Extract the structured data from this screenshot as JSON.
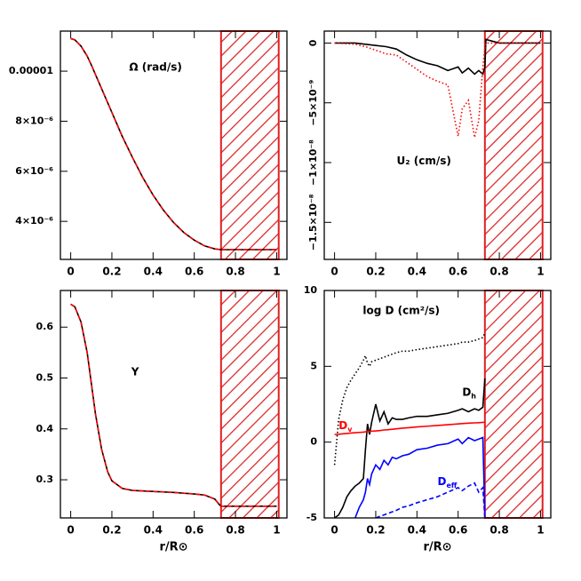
{
  "chart_data": [
    {
      "type": "line",
      "title": "Ω (rad/s)",
      "x": [
        0,
        0.02,
        0.05,
        0.08,
        0.1,
        0.15,
        0.2,
        0.25,
        0.3,
        0.35,
        0.4,
        0.45,
        0.5,
        0.55,
        0.6,
        0.65,
        0.7,
        0.73,
        0.8,
        0.9,
        1.0
      ],
      "series": [
        {
          "color": "#000000",
          "dash": "solid",
          "values": [
            1.13e-05,
            1.125e-05,
            1.1e-05,
            1.06e-05,
            1.025e-05,
            9.3e-06,
            8.35e-06,
            7.4e-06,
            6.55e-06,
            5.75e-06,
            5.05e-06,
            4.45e-06,
            3.95e-06,
            3.55e-06,
            3.25e-06,
            3.02e-06,
            2.9e-06,
            2.87e-06,
            2.87e-06,
            2.87e-06,
            2.87e-06
          ]
        },
        {
          "color": "#ff0000",
          "dash": "dashed",
          "values": [
            1.13e-05,
            1.125e-05,
            1.1e-05,
            1.06e-05,
            1.025e-05,
            9.3e-06,
            8.35e-06,
            7.4e-06,
            6.55e-06,
            5.75e-06,
            5.05e-06,
            4.45e-06,
            3.95e-06,
            3.55e-06,
            3.25e-06,
            3.02e-06,
            2.9e-06,
            2.87e-06,
            2.87e-06,
            2.87e-06,
            2.87e-06
          ]
        }
      ],
      "xlim": [
        -0.05,
        1.05
      ],
      "xticks": [
        0,
        0.2,
        0.4,
        0.6,
        0.8,
        1
      ],
      "ylim": [
        2.48e-06,
        1.16e-05
      ],
      "yticks": [
        {
          "value": 4e-06,
          "label": "4×10⁻⁶"
        },
        {
          "value": 6e-06,
          "label": "6×10⁻⁶"
        },
        {
          "value": 8e-06,
          "label": "8×10⁻⁶"
        },
        1e-05
      ],
      "shaded_region": [
        0.73,
        1.01
      ],
      "shade_color": "#dd2222"
    },
    {
      "type": "line",
      "title": "U₂ (cm/s)",
      "x": [
        0,
        0.1,
        0.15,
        0.2,
        0.25,
        0.3,
        0.35,
        0.4,
        0.45,
        0.5,
        0.55,
        0.6,
        0.62,
        0.65,
        0.68,
        0.7,
        0.72,
        0.73,
        0.735,
        0.8,
        0.9,
        1.0
      ],
      "series": [
        {
          "color": "#000000",
          "dash": "solid",
          "values": [
            0,
            0,
            -1e-10,
            -2e-10,
            -3e-10,
            -5e-10,
            -1e-09,
            -1.4e-09,
            -1.7e-09,
            -1.9e-09,
            -2.3e-09,
            -2e-09,
            -2.5e-09,
            -2.1e-09,
            -2.6e-09,
            -2.3e-09,
            -2.6e-09,
            -2e-09,
            3e-10,
            0,
            0,
            0
          ]
        },
        {
          "color": "#ff0000",
          "dash": "dotted",
          "values": [
            0,
            -1e-10,
            -3e-10,
            -6e-10,
            -9e-10,
            -1e-09,
            -1.6e-09,
            -2.2e-09,
            -2.8e-09,
            -3.2e-09,
            -3.5e-09,
            -7.8e-09,
            -5.5e-09,
            -4.8e-09,
            -7.9e-09,
            -6.5e-09,
            -2e-09,
            -5e-10,
            0,
            0,
            0,
            0
          ]
        }
      ],
      "xlim": [
        -0.05,
        1.05
      ],
      "xticks": [
        0,
        0.2,
        0.4,
        0.6,
        0.8,
        1
      ],
      "ylim": [
        -1.81e-08,
        1e-09
      ],
      "yticks": [
        {
          "value": -1.5e-08,
          "label": "−1.5×10⁻⁸"
        },
        {
          "value": -1e-08,
          "label": "−1×10⁻⁸"
        },
        {
          "value": -5e-09,
          "label": "−5×10⁻⁹"
        },
        0
      ],
      "shaded_region": [
        0.73,
        1.01
      ],
      "shade_color": "#dd2222"
    },
    {
      "type": "line",
      "title": "Y",
      "xlabel": "r/R⊙",
      "x": [
        0,
        0.02,
        0.05,
        0.08,
        0.1,
        0.12,
        0.15,
        0.18,
        0.2,
        0.25,
        0.3,
        0.4,
        0.5,
        0.6,
        0.65,
        0.7,
        0.72,
        0.73,
        0.8,
        0.9,
        1.0
      ],
      "series": [
        {
          "color": "#000000",
          "dash": "solid",
          "values": [
            0.645,
            0.64,
            0.61,
            0.55,
            0.49,
            0.43,
            0.36,
            0.315,
            0.298,
            0.283,
            0.279,
            0.277,
            0.275,
            0.272,
            0.27,
            0.262,
            0.252,
            0.248,
            0.248,
            0.248,
            0.248
          ]
        },
        {
          "color": "#ff0000",
          "dash": "dashed",
          "values": [
            0.645,
            0.64,
            0.61,
            0.55,
            0.49,
            0.43,
            0.36,
            0.315,
            0.298,
            0.283,
            0.279,
            0.277,
            0.275,
            0.272,
            0.27,
            0.262,
            0.252,
            0.248,
            0.248,
            0.248,
            0.248
          ]
        }
      ],
      "xlim": [
        -0.05,
        1.05
      ],
      "xticks": [
        0,
        0.2,
        0.4,
        0.6,
        0.8,
        1
      ],
      "ylim": [
        0.225,
        0.672
      ],
      "yticks": [
        0.3,
        0.4,
        0.5,
        0.6
      ],
      "shaded_region": [
        0.73,
        1.01
      ],
      "shade_color": "#dd2222"
    },
    {
      "type": "line",
      "title": "log D (cm²/s)",
      "xlabel": "r/R⊙",
      "x": [
        0,
        0.02,
        0.04,
        0.06,
        0.08,
        0.1,
        0.12,
        0.14,
        0.15,
        0.16,
        0.17,
        0.18,
        0.2,
        0.22,
        0.24,
        0.26,
        0.28,
        0.3,
        0.33,
        0.36,
        0.4,
        0.45,
        0.5,
        0.55,
        0.6,
        0.62,
        0.65,
        0.68,
        0.7,
        0.72,
        0.73
      ],
      "series": [
        {
          "color": "#000000",
          "dash": "dotted",
          "values": [
            -1.5,
            1.5,
            2.8,
            3.6,
            4.1,
            4.5,
            4.9,
            5.4,
            5.7,
            5.2,
            5.0,
            5.3,
            5.4,
            5.5,
            5.6,
            5.7,
            5.8,
            5.9,
            6.0,
            6.0,
            6.1,
            6.2,
            6.3,
            6.4,
            6.5,
            6.6,
            6.6,
            6.7,
            6.8,
            6.9,
            7.2
          ]
        },
        {
          "color": "#000000",
          "dash": "solid",
          "values": [
            -5,
            -4.8,
            -4.3,
            -3.6,
            -3.2,
            -2.9,
            -2.7,
            -2.4,
            -0.5,
            1.2,
            0.5,
            1.3,
            2.5,
            1.4,
            2.0,
            1.2,
            1.6,
            1.5,
            1.5,
            1.6,
            1.7,
            1.7,
            1.8,
            1.9,
            2.1,
            2.2,
            2.0,
            2.2,
            2.1,
            2.3,
            4.2
          ]
        },
        {
          "color": "#ff0000",
          "dash": "solid",
          "values": [
            0.5,
            0.52,
            0.55,
            0.57,
            0.6,
            0.62,
            0.64,
            0.66,
            0.68,
            0.69,
            0.7,
            0.72,
            0.74,
            0.76,
            0.8,
            0.82,
            0.85,
            0.88,
            0.92,
            0.95,
            1.0,
            1.05,
            1.1,
            1.15,
            1.2,
            1.22,
            1.25,
            1.27,
            1.28,
            1.3,
            1.32
          ]
        },
        {
          "color": "#0000ff",
          "dash": "solid",
          "values": [
            null,
            null,
            null,
            null,
            null,
            -5,
            -4.3,
            -3.8,
            -3.3,
            -2.4,
            -2.8,
            -2.1,
            -1.5,
            -1.8,
            -1.2,
            -1.5,
            -1.0,
            -1.1,
            -0.9,
            -0.8,
            -0.5,
            -0.4,
            -0.2,
            -0.1,
            0.2,
            -0.1,
            0.3,
            0.1,
            0.2,
            0.3,
            -5
          ]
        },
        {
          "color": "#0000ff",
          "dash": "dashed",
          "values": [
            null,
            null,
            null,
            null,
            null,
            null,
            null,
            null,
            null,
            null,
            null,
            null,
            -5,
            -4.9,
            -4.8,
            -4.7,
            -4.6,
            -4.5,
            -4.3,
            -4.2,
            -4.0,
            -3.8,
            -3.6,
            -3.3,
            -3.0,
            -3.2,
            -2.9,
            -2.7,
            -3.3,
            -3.0,
            -5
          ]
        }
      ],
      "annotations": [
        {
          "text": "D",
          "sub": "h",
          "color": "#000000"
        },
        {
          "text": "D",
          "sub": "v",
          "color": "#ff0000"
        },
        {
          "text": "D",
          "sub": "eff",
          "color": "#0000ff"
        }
      ],
      "xlim": [
        -0.05,
        1.05
      ],
      "xticks": [
        0,
        0.2,
        0.4,
        0.6,
        0.8,
        1
      ],
      "ylim": [
        -5,
        10
      ],
      "yticks": [
        -5,
        0,
        5,
        10
      ],
      "shaded_region": [
        0.73,
        1.01
      ],
      "shade_color": "#dd2222"
    }
  ]
}
